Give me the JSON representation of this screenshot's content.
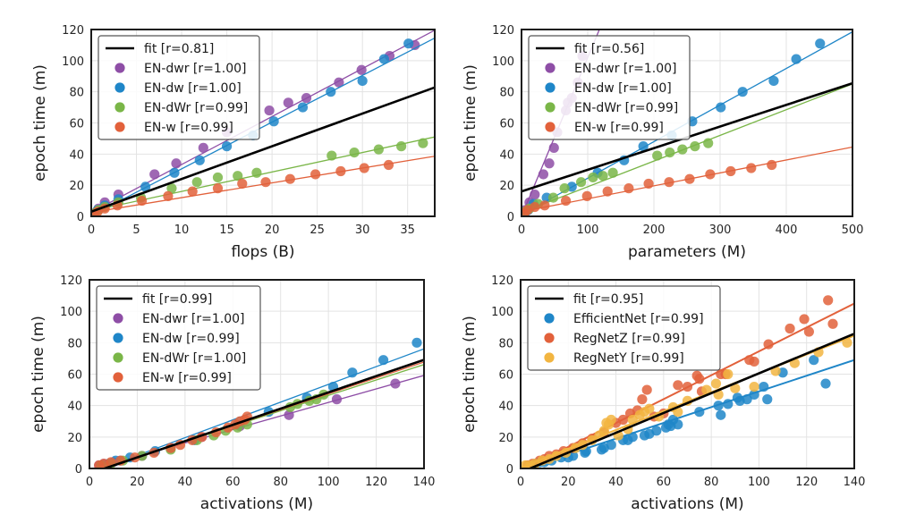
{
  "colors": {
    "fit": "#000000",
    "purple": "#8e4ea6",
    "blue": "#1f86c8",
    "green": "#7ab648",
    "orange": "#e2613b",
    "yellow": "#f2b541",
    "grid": "#e3e3e3",
    "frame": "#1a1a1a"
  },
  "chart_data": [
    {
      "type": "scatter",
      "id": "flops",
      "xlabel": "flops (B)",
      "ylabel": "epoch time (m)",
      "xlim": [
        0,
        38
      ],
      "ylim": [
        0,
        120
      ],
      "xticks": [
        0,
        5,
        10,
        15,
        20,
        25,
        30,
        35
      ],
      "yticks": [
        0,
        20,
        40,
        60,
        80,
        100,
        120
      ],
      "grid": true,
      "legend_position": "top-left",
      "fit": {
        "label": "fit [r=0.81]",
        "slope": 2.1,
        "intercept": 3
      },
      "series": [
        {
          "name": "EN-dwr [r=1.00]",
          "color": "purple",
          "fit": {
            "slope": 3.08,
            "intercept": 2.5
          },
          "x": [
            0.4,
            0.8,
            1.5,
            3.0,
            7.0,
            9.4,
            12.4,
            15.0,
            19.7,
            21.8,
            23.8,
            27.4,
            29.9,
            33.0,
            35.8
          ],
          "y": [
            2,
            5,
            9,
            14,
            27,
            34,
            44,
            54,
            68,
            73,
            76,
            86,
            94,
            103,
            110
          ]
        },
        {
          "name": "EN-dw [r=1.00]",
          "color": "blue",
          "fit": {
            "slope": 3.0,
            "intercept": 0.5
          },
          "x": [
            0.3,
            0.7,
            1.5,
            3.0,
            6.0,
            9.2,
            12.0,
            15.0,
            17.9,
            20.2,
            23.4,
            26.5,
            30.0,
            32.4,
            35.1
          ],
          "y": [
            1,
            4,
            7,
            11,
            19,
            28,
            36,
            45,
            52,
            61,
            70,
            80,
            87,
            101,
            111
          ]
        },
        {
          "name": "EN-dWr [r=0.99]",
          "color": "green",
          "fit": {
            "slope": 1.25,
            "intercept": 3.5
          },
          "x": [
            0.4,
            0.8,
            1.5,
            3.0,
            5.5,
            8.9,
            11.7,
            14.0,
            16.2,
            18.3,
            26.6,
            29.1,
            31.8,
            34.3,
            36.7
          ],
          "y": [
            2,
            4,
            6,
            9,
            12,
            18,
            22,
            25,
            26,
            28,
            39,
            41,
            43,
            45,
            47
          ]
        },
        {
          "name": "EN-w [r=0.99]",
          "color": "orange",
          "fit": {
            "slope": 0.95,
            "intercept": 2.5
          },
          "x": [
            0.3,
            0.7,
            1.5,
            2.9,
            5.6,
            8.5,
            11.2,
            14.0,
            16.7,
            19.3,
            22.0,
            24.8,
            27.6,
            30.2,
            32.9
          ],
          "y": [
            1,
            3,
            5,
            7,
            10,
            13,
            16,
            18,
            21,
            22,
            24,
            27,
            29,
            31,
            33
          ]
        }
      ]
    },
    {
      "type": "scatter",
      "id": "parameters",
      "xlabel": "parameters (M)",
      "ylabel": "epoch time (m)",
      "xlim": [
        0,
        500
      ],
      "ylim": [
        0,
        120
      ],
      "xticks": [
        0,
        100,
        200,
        300,
        400,
        500
      ],
      "yticks": [
        0,
        20,
        40,
        60,
        80,
        100,
        120
      ],
      "grid": true,
      "legend_position": "top-left",
      "fit": {
        "label": "fit [r=0.56]",
        "slope": 0.139,
        "intercept": 16
      },
      "series": [
        {
          "name": "EN-dwr [r=1.00]",
          "color": "purple",
          "fit": {
            "slope": 1.02,
            "intercept": 0
          },
          "x": [
            5,
            12,
            20,
            33,
            42,
            49,
            54,
            67,
            70,
            76,
            85,
            92
          ],
          "y": [
            4,
            9,
            14,
            27,
            34,
            44,
            54,
            68,
            73,
            76,
            86,
            103
          ]
        },
        {
          "name": "EN-dw [r=1.00]",
          "color": "blue",
          "fit": {
            "slope": 0.235,
            "intercept": 1
          },
          "x": [
            5,
            10,
            18,
            38,
            76,
            115,
            155,
            184,
            227,
            258,
            301,
            334,
            381,
            415,
            451
          ],
          "y": [
            2,
            4,
            8,
            12,
            19,
            28,
            36,
            45,
            52,
            61,
            70,
            80,
            87,
            101,
            111
          ]
        },
        {
          "name": "EN-dWr [r=0.99]",
          "color": "green",
          "fit": {
            "slope": 0.165,
            "intercept": 2.5
          },
          "x": [
            5,
            12,
            25,
            48,
            65,
            90,
            108,
            123,
            138,
            205,
            224,
            243,
            262,
            282
          ],
          "y": [
            3,
            5,
            8,
            12,
            18,
            22,
            25,
            26,
            28,
            39,
            41,
            43,
            45,
            47
          ]
        },
        {
          "name": "EN-w [r=0.99]",
          "color": "orange",
          "fit": {
            "slope": 0.083,
            "intercept": 3
          },
          "x": [
            4,
            9,
            20,
            35,
            67,
            99,
            130,
            162,
            192,
            223,
            254,
            285,
            316,
            347,
            378
          ],
          "y": [
            2,
            4,
            6,
            7,
            10,
            13,
            16,
            18,
            21,
            22,
            24,
            27,
            29,
            31,
            33
          ]
        }
      ]
    },
    {
      "type": "scatter",
      "id": "activations-en",
      "xlabel": "activations (M)",
      "ylabel": "epoch time (m)",
      "xlim": [
        0,
        140
      ],
      "ylim": [
        0,
        120
      ],
      "xticks": [
        0,
        20,
        40,
        60,
        80,
        100,
        120,
        140
      ],
      "yticks": [
        0,
        20,
        40,
        60,
        80,
        100,
        120
      ],
      "grid": true,
      "legend_position": "top-left",
      "fit": {
        "label": "fit [r=0.99]",
        "slope": 0.517,
        "intercept": -3.3
      },
      "series": [
        {
          "name": "EN-dwr [r=1.00]",
          "color": "purple",
          "fit": {
            "slope": 0.43,
            "intercept": -1
          },
          "x": [
            4,
            6,
            10,
            13,
            22,
            34,
            47,
            63,
            83.5,
            103.5,
            128
          ],
          "y": [
            2,
            3,
            4,
            5,
            8,
            13,
            20,
            27,
            34,
            44,
            54
          ]
        },
        {
          "name": "EN-dw [r=0.99]",
          "color": "blue",
          "fit": {
            "slope": 0.565,
            "intercept": -3
          },
          "x": [
            5,
            8,
            11,
            17,
            27.5,
            44,
            62,
            75,
            91,
            102,
            110,
            123,
            137
          ],
          "y": [
            2,
            3,
            5,
            7,
            11,
            18,
            28,
            36,
            45,
            52,
            61,
            69,
            80
          ]
        },
        {
          "name": "EN-dWr [r=1.00]",
          "color": "green",
          "fit": {
            "slope": 0.49,
            "intercept": -2.5
          },
          "x": [
            5,
            9,
            14,
            22,
            34,
            45,
            52,
            57,
            62,
            66,
            84,
            87,
            92,
            95,
            98
          ],
          "y": [
            2,
            3,
            5,
            8,
            12,
            18,
            21,
            24,
            26,
            28,
            39,
            41,
            43,
            44,
            47
          ]
        },
        {
          "name": "EN-w [r=0.99]",
          "color": "orange",
          "fit": {
            "slope": 0.505,
            "intercept": -3
          },
          "x": [
            4,
            6,
            9,
            13,
            19,
            27,
            34,
            38,
            43,
            47,
            53,
            58,
            61,
            63,
            65,
            66
          ],
          "y": [
            2,
            3,
            4,
            5,
            7,
            10,
            13,
            15,
            18,
            20,
            23,
            26,
            28,
            30,
            31,
            33
          ]
        }
      ]
    },
    {
      "type": "scatter",
      "id": "activations-models",
      "xlabel": "activations (M)",
      "ylabel": "epoch time (m)",
      "xlim": [
        0,
        140
      ],
      "ylim": [
        0,
        120
      ],
      "xticks": [
        0,
        20,
        40,
        60,
        80,
        100,
        120,
        140
      ],
      "yticks": [
        0,
        20,
        40,
        60,
        80,
        100,
        120
      ],
      "grid": true,
      "legend_position": "top-left",
      "fit": {
        "label": "fit [r=0.95]",
        "slope": 0.63,
        "intercept": -2.5
      },
      "series": [
        {
          "name": "EfficientNet [r=0.99]",
          "color": "blue",
          "fit": {
            "slope": 0.5,
            "intercept": -1
          },
          "x": [
            4,
            6,
            8,
            10,
            13,
            17,
            20,
            22,
            27,
            27.5,
            34,
            35,
            38,
            43,
            45,
            47,
            52,
            54,
            57,
            61,
            62,
            63,
            64,
            66,
            75,
            83,
            84,
            87,
            91,
            92,
            95,
            98,
            102,
            103.5,
            110,
            123,
            128
          ],
          "y": [
            2,
            3,
            4,
            4,
            5,
            7,
            7,
            8,
            10,
            11,
            12,
            13,
            15,
            18,
            18,
            20,
            21,
            22,
            24,
            26,
            28,
            27,
            31,
            28,
            36,
            40,
            34,
            41,
            45,
            43,
            44,
            47,
            52,
            44,
            61,
            69,
            54
          ]
        },
        {
          "name": "RegNetZ [r=0.99]",
          "color": "orange",
          "fit": {
            "slope": 0.76,
            "intercept": -1.5
          },
          "x": [
            3,
            5,
            8,
            10,
            12,
            15,
            18,
            22,
            26,
            30,
            35,
            40,
            43,
            46,
            49,
            51,
            53,
            56,
            60,
            66,
            70,
            74,
            75,
            76,
            84,
            86,
            96,
            98,
            104,
            113,
            119,
            121,
            129,
            131
          ],
          "y": [
            2,
            3,
            5,
            6,
            8,
            9,
            11,
            13,
            16,
            19,
            23,
            29,
            31,
            35,
            37,
            44,
            50,
            33,
            35,
            53,
            52,
            59,
            57,
            49,
            60,
            60,
            69,
            68,
            79,
            89,
            95,
            87,
            107,
            92
          ]
        },
        {
          "name": "RegNetY [r=0.99]",
          "color": "yellow",
          "fit": {
            "slope": 0.6,
            "intercept": 0.5
          },
          "x": [
            2,
            4,
            6,
            9,
            12,
            15,
            19,
            23,
            26,
            30,
            33,
            35,
            36,
            37,
            38,
            41,
            45,
            47,
            50,
            52,
            54,
            58,
            64,
            66,
            70,
            78,
            82,
            83,
            87,
            90,
            98,
            107,
            115,
            125,
            137
          ],
          "y": [
            2,
            2,
            3,
            5,
            6,
            8,
            10,
            13,
            15,
            18,
            21,
            24,
            29,
            28,
            31,
            21,
            25,
            31,
            34,
            36,
            38,
            33,
            39,
            36,
            43,
            50,
            54,
            47,
            60,
            51,
            52,
            62,
            67,
            74,
            80
          ]
        }
      ]
    }
  ]
}
